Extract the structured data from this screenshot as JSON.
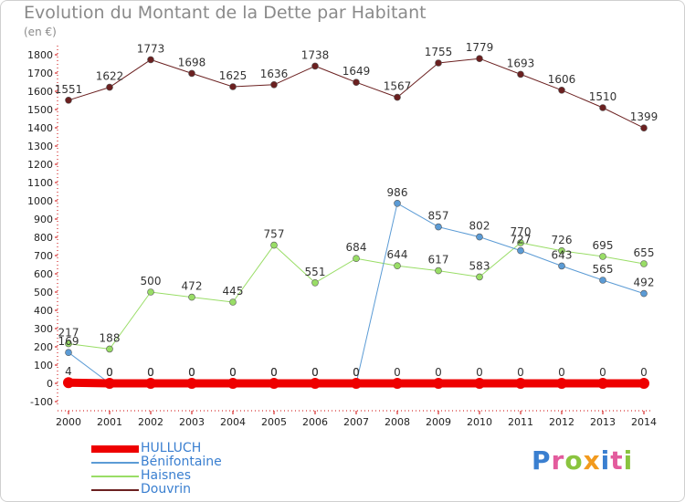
{
  "title": "Evolution du Montant de la Dette par Habitant",
  "subtitle": "(en €)",
  "brand": {
    "letters": [
      {
        "ch": "P",
        "color": "#3a7fd0"
      },
      {
        "ch": "r",
        "color": "#e35b9d"
      },
      {
        "ch": "o",
        "color": "#8ac43f"
      },
      {
        "ch": "x",
        "color": "#f29a1d"
      },
      {
        "ch": "i",
        "color": "#3a7fd0"
      },
      {
        "ch": "t",
        "color": "#e35b9d"
      },
      {
        "ch": "i",
        "color": "#8ac43f"
      }
    ]
  },
  "chart_data": {
    "type": "line",
    "x": [
      "2000",
      "2001",
      "2002",
      "2003",
      "2004",
      "2005",
      "2006",
      "2007",
      "2008",
      "2009",
      "2010",
      "2011",
      "2012",
      "2013",
      "2014"
    ],
    "ylim": [
      -100,
      1800
    ],
    "yticks": [
      -100,
      0,
      100,
      200,
      300,
      400,
      500,
      600,
      700,
      800,
      900,
      1000,
      1100,
      1200,
      1300,
      1400,
      1500,
      1600,
      1700,
      1800
    ],
    "grid": false,
    "legend_position": "bottom-left",
    "series": [
      {
        "name": "HULLUCH",
        "color": "#ee0000",
        "line_width": 9,
        "values": [
          4,
          0,
          0,
          0,
          0,
          0,
          0,
          0,
          0,
          0,
          0,
          0,
          0,
          0,
          0
        ]
      },
      {
        "name": "Bénifontaine",
        "color": "#5b9bd5",
        "line_width": 1,
        "values": [
          169,
          0,
          0,
          0,
          0,
          0,
          0,
          0,
          986,
          857,
          802,
          727,
          643,
          565,
          492
        ]
      },
      {
        "name": "Haisnes",
        "color": "#99dd66",
        "line_width": 1,
        "values": [
          217,
          188,
          500,
          472,
          445,
          757,
          551,
          684,
          644,
          617,
          583,
          770,
          726,
          695,
          655
        ]
      },
      {
        "name": "Douvrin",
        "color": "#6b2020",
        "line_width": 1,
        "values": [
          1551,
          1622,
          1773,
          1698,
          1625,
          1636,
          1738,
          1649,
          1567,
          1755,
          1779,
          1693,
          1606,
          1510,
          1399
        ]
      }
    ]
  }
}
